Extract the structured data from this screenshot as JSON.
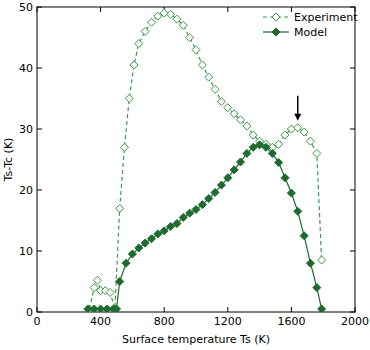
{
  "chart_data": {
    "type": "line",
    "x_label": "Surface temperature Ts (K)",
    "y_label": "Ts-Tc (K)",
    "xlim": [
      0,
      2000
    ],
    "xticks": [
      0,
      400,
      800,
      1200,
      1600,
      2000
    ],
    "ylim": [
      0,
      50
    ],
    "yticks": [
      0,
      10,
      20,
      30,
      40,
      50
    ],
    "legend": "upper-right",
    "series": [
      {
        "name": "Experiment",
        "color": "#3a9a48",
        "marker": "diamond-open",
        "line_style": "dashed",
        "x": [
          330,
          360,
          380,
          400,
          430,
          460,
          490,
          520,
          550,
          580,
          610,
          640,
          680,
          720,
          760,
          800,
          840,
          880,
          920,
          960,
          1000,
          1040,
          1080,
          1120,
          1160,
          1200,
          1240,
          1280,
          1320,
          1360,
          1400,
          1440,
          1480,
          1520,
          1560,
          1600,
          1640,
          1680,
          1720,
          1760,
          1790
        ],
        "values": [
          0.5,
          4,
          5.2,
          3.5,
          3.5,
          3.2,
          0.5,
          17,
          27,
          35,
          40.5,
          44,
          46,
          47.5,
          48.5,
          49,
          48.8,
          48,
          47,
          45,
          43,
          40.5,
          38.5,
          36.5,
          34.5,
          33.5,
          32.5,
          31.5,
          30.5,
          29,
          28,
          27.5,
          27,
          27.5,
          29,
          30,
          30.2,
          29.5,
          28,
          26,
          8.5
        ]
      },
      {
        "name": "Model",
        "color": "#1e6b30",
        "marker": "diamond",
        "line_style": "solid",
        "x": [
          320,
          360,
          400,
          440,
          480,
          500,
          520,
          560,
          600,
          640,
          680,
          720,
          760,
          800,
          840,
          880,
          920,
          960,
          1000,
          1040,
          1080,
          1120,
          1160,
          1200,
          1240,
          1280,
          1320,
          1360,
          1400,
          1440,
          1480,
          1520,
          1560,
          1600,
          1640,
          1680,
          1720,
          1760,
          1790
        ],
        "values": [
          0.5,
          0.5,
          0.5,
          0.5,
          0.5,
          0.5,
          5,
          8,
          9.5,
          10.5,
          11.3,
          12,
          12.8,
          13.3,
          14,
          14.5,
          15.5,
          16.2,
          16.8,
          17.6,
          18.6,
          19.6,
          20.8,
          22,
          23.3,
          24.6,
          26,
          27,
          27.4,
          27,
          26,
          24.5,
          22,
          19.5,
          16.5,
          12.5,
          8,
          4,
          0.5
        ]
      }
    ]
  }
}
